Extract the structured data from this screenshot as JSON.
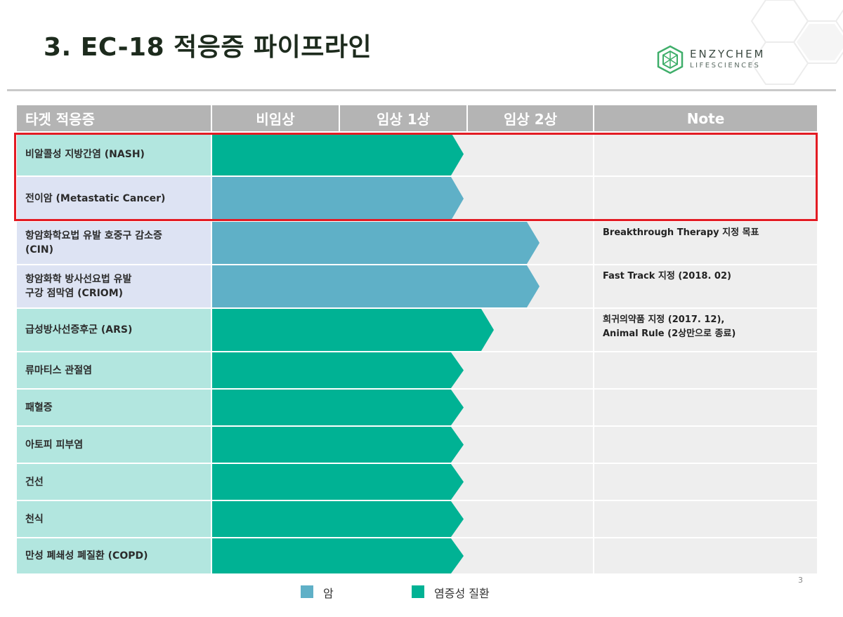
{
  "slide": {
    "title": "3. EC-18 적응증 파이프라인",
    "page_number": "3"
  },
  "logo": {
    "name": "ENZYCHEM",
    "sub": "LIFESCIENCES"
  },
  "table": {
    "headers": [
      "타겟 적응증",
      "비임상",
      "임상 1상",
      "임상 2상",
      "Note"
    ],
    "rows": [
      {
        "label": "비알콜성 지방간염 (NASH)",
        "category": "inflammatory",
        "progress": 0.66,
        "note": ""
      },
      {
        "label": "전이암 (Metastatic Cancer)",
        "category": "cancer",
        "progress": 0.66,
        "note": ""
      },
      {
        "label": "항암화학요법  유발 호중구 감소증\n(CIN)",
        "category": "cancer",
        "progress": 0.86,
        "note": "Breakthrough Therapy 지정  목표"
      },
      {
        "label": "항암화학 방사선요법 유발\n구강 점막염 (CRIOM)",
        "category": "cancer",
        "progress": 0.86,
        "note": "Fast Track 지정 (2018. 02)"
      },
      {
        "label": "급성방사선증후군 (ARS)",
        "category": "inflammatory",
        "progress": 0.74,
        "note": "희귀의약품 지정 (2017. 12),\nAnimal Rule (2상만으로 종료)"
      },
      {
        "label": "류마티스 관절염",
        "category": "inflammatory",
        "progress": 0.66,
        "note": ""
      },
      {
        "label": "패혈증",
        "category": "inflammatory",
        "progress": 0.66,
        "note": ""
      },
      {
        "label": "아토피 피부염",
        "category": "inflammatory",
        "progress": 0.66,
        "note": ""
      },
      {
        "label": "건선",
        "category": "inflammatory",
        "progress": 0.66,
        "note": ""
      },
      {
        "label": "천식",
        "category": "inflammatory",
        "progress": 0.66,
        "note": ""
      },
      {
        "label": "만성 폐쇄성 폐질환 (COPD)",
        "category": "inflammatory",
        "progress": 0.66,
        "note": ""
      }
    ],
    "highlighted_rows": [
      0,
      1
    ]
  },
  "legend": [
    {
      "label": "암",
      "category": "cancer"
    },
    {
      "label": "염증성 질환",
      "category": "inflammatory"
    }
  ],
  "colors": {
    "cancer": "#5fb0c7",
    "inflammatory": "#00b294",
    "cancer_label_bg": "#dde3f3",
    "inflammatory_label_bg": "#b2e6df",
    "highlight": "#e31b23",
    "header_bg": "#b4b4b4"
  }
}
